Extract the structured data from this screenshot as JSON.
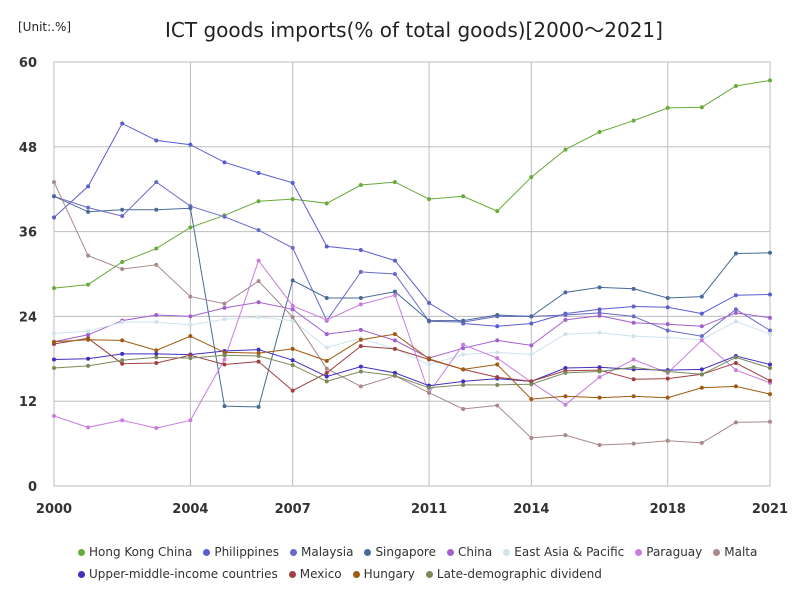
{
  "chart_data": {
    "type": "line",
    "title": "ICT goods imports(% of total goods)[2000～2021]",
    "unit_label": "[Unit:.%]",
    "ylim": [
      0,
      60
    ],
    "yticks": [
      0,
      12,
      24,
      36,
      48,
      60
    ],
    "xlim": [
      2000,
      2021
    ],
    "xticks": [
      2000,
      2004,
      2007,
      2011,
      2014,
      2018,
      2021
    ],
    "x": [
      2000,
      2001,
      2002,
      2003,
      2004,
      2005,
      2006,
      2007,
      2008,
      2009,
      2010,
      2011,
      2012,
      2013,
      2014,
      2015,
      2016,
      2017,
      2018,
      2019,
      2020,
      2021
    ],
    "grid": true,
    "legend_position": "bottom",
    "series": [
      {
        "name": "Hong Kong China",
        "color": "#6aaa3a",
        "values": [
          28.0,
          28.5,
          31.7,
          33.6,
          36.6,
          38.3,
          40.3,
          40.6,
          40.0,
          42.6,
          43.0,
          40.6,
          41.0,
          38.9,
          43.7,
          47.6,
          50.1,
          51.7,
          53.5,
          53.6,
          56.6,
          57.4
        ]
      },
      {
        "name": "Philippines",
        "color": "#5a5ed0",
        "values": [
          38.0,
          42.4,
          51.3,
          48.9,
          48.3,
          45.8,
          44.3,
          42.9,
          33.9,
          33.4,
          31.9,
          25.9,
          23.0,
          22.6,
          23.0,
          24.4,
          25.0,
          25.4,
          25.3,
          24.4,
          27.0,
          27.1
        ]
      },
      {
        "name": "Malaysia",
        "color": "#6a6ac8",
        "values": [
          41.0,
          39.4,
          38.2,
          43.0,
          39.6,
          38.1,
          36.2,
          33.7,
          23.4,
          30.3,
          30.0,
          23.3,
          23.2,
          24.0,
          24.0,
          24.2,
          24.5,
          24.0,
          22.0,
          21.2,
          25.0,
          22.0
        ]
      },
      {
        "name": "Singapore",
        "color": "#4a6a9a",
        "values": [
          41.0,
          38.8,
          39.1,
          39.1,
          39.3,
          11.3,
          11.2,
          29.1,
          26.6,
          26.6,
          27.5,
          23.4,
          23.4,
          24.2,
          24.0,
          27.4,
          28.1,
          27.9,
          26.6,
          26.8,
          32.9,
          33.0
        ]
      },
      {
        "name": "China",
        "color": "#a060d0",
        "values": [
          20.4,
          21.4,
          23.4,
          24.2,
          24.0,
          25.2,
          26.0,
          25.0,
          21.5,
          22.1,
          20.6,
          18.1,
          19.5,
          20.6,
          19.9,
          23.5,
          24.1,
          23.1,
          22.9,
          22.6,
          24.5,
          23.8
        ]
      },
      {
        "name": "East Asia & Pacific",
        "color": "#cfe3ec",
        "values": [
          21.6,
          21.9,
          23.2,
          23.2,
          22.8,
          23.6,
          23.9,
          23.4,
          19.6,
          20.9,
          19.4,
          17.2,
          18.6,
          18.9,
          18.6,
          21.5,
          21.7,
          21.2,
          21.0,
          20.7,
          23.3,
          21.5
        ]
      },
      {
        "name": "Paraguay",
        "color": "#c87ee0",
        "values": [
          9.9,
          8.3,
          9.3,
          8.2,
          9.3,
          17.9,
          31.9,
          25.5,
          23.5,
          25.7,
          27.0,
          13.2,
          20.0,
          18.1,
          14.7,
          11.5,
          15.4,
          17.9,
          16.0,
          20.6,
          16.4,
          14.6
        ]
      },
      {
        "name": "Malta",
        "color": "#a88a8a",
        "values": [
          43.0,
          32.6,
          30.7,
          31.3,
          26.8,
          25.8,
          29.0,
          23.9,
          16.6,
          14.1,
          15.6,
          13.2,
          10.9,
          11.4,
          6.8,
          7.2,
          5.8,
          6.0,
          6.4,
          6.1,
          9.0,
          9.1
        ]
      },
      {
        "name": "Upper-middle-income countries",
        "color": "#4030c0",
        "values": [
          17.9,
          18.0,
          18.7,
          18.7,
          18.6,
          19.1,
          19.3,
          17.8,
          15.5,
          16.9,
          16.0,
          14.2,
          14.8,
          15.2,
          14.8,
          16.7,
          16.8,
          16.5,
          16.4,
          16.5,
          18.4,
          17.2
        ]
      },
      {
        "name": "Mexico",
        "color": "#a04040",
        "values": [
          20.1,
          20.9,
          17.3,
          17.4,
          18.5,
          17.2,
          17.6,
          13.5,
          16.0,
          19.8,
          19.4,
          17.9,
          16.5,
          15.4,
          14.8,
          16.3,
          16.4,
          15.1,
          15.2,
          15.8,
          17.4,
          14.9
        ]
      },
      {
        "name": "Hungary",
        "color": "#a05a10",
        "values": [
          20.4,
          20.7,
          20.6,
          19.2,
          21.2,
          18.9,
          18.8,
          19.4,
          17.7,
          20.7,
          21.5,
          18.0,
          16.5,
          17.2,
          12.3,
          12.7,
          12.5,
          12.7,
          12.5,
          13.9,
          14.1,
          13.0
        ]
      },
      {
        "name": "Late-demographic dividend",
        "color": "#7a8a5a",
        "values": [
          16.7,
          17.0,
          17.8,
          18.2,
          18.1,
          18.5,
          18.4,
          17.1,
          14.8,
          16.2,
          15.6,
          13.9,
          14.3,
          14.3,
          14.4,
          16.0,
          16.2,
          16.8,
          16.2,
          15.8,
          18.2,
          16.7
        ]
      }
    ]
  }
}
